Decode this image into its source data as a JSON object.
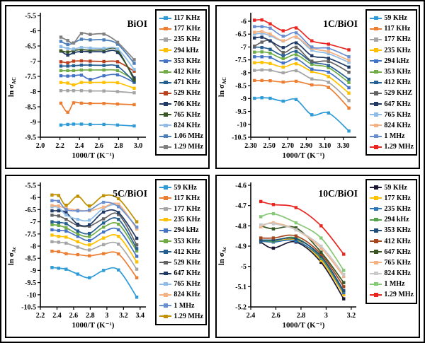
{
  "figure": {
    "background": "#ffffff",
    "border_color": "#000000"
  },
  "chart_data": [
    {
      "id": "bioi",
      "type": "line",
      "title": "BiOI",
      "ylabel_main": "ln σ",
      "ylabel_sub": "AC",
      "xlabel": "1000/T (K⁻¹)",
      "legend_position": "right",
      "grid": false,
      "xlim": [
        2.0,
        3.08
      ],
      "ylim": [
        -9.5,
        -5.5
      ],
      "xticks": [
        2.0,
        2.2,
        2.4,
        2.6,
        2.8,
        3.0
      ],
      "xtick_labels": [
        "2.0",
        "2.2",
        "2.4",
        "2.6",
        "2.8",
        "3.0"
      ],
      "yticks": [
        -5.5,
        -6,
        -6.5,
        -7,
        -7.5,
        -8,
        -8.5,
        -9,
        -9.5
      ],
      "ytick_labels": [
        "-5.5",
        "-6",
        "-6.5",
        "-7",
        "-7.5",
        "-8",
        "-8.5",
        "-9",
        "-9.5"
      ],
      "x": [
        2.21,
        2.28,
        2.34,
        2.42,
        2.51,
        2.65,
        2.79,
        2.96
      ],
      "series": [
        {
          "name": "117 KHz",
          "color": "#2E9BD6",
          "values": [
            -9.1,
            -9.08,
            -9.07,
            -9.07,
            -9.08,
            -9.08,
            -9.1,
            -9.13
          ]
        },
        {
          "name": "177 KHz",
          "color": "#ED7D31",
          "values": [
            -8.38,
            -8.68,
            -8.37,
            -8.38,
            -8.39,
            -8.39,
            -8.41,
            -8.43
          ]
        },
        {
          "name": "235 KHz",
          "color": "#A5A5A5",
          "values": [
            -7.97,
            -7.97,
            -7.97,
            -7.97,
            -7.98,
            -7.98,
            -8.0,
            -8.04
          ]
        },
        {
          "name": "294 kHz",
          "color": "#FFC000",
          "values": [
            -7.7,
            -7.72,
            -7.78,
            -7.7,
            -7.7,
            -7.7,
            -7.71,
            -7.89
          ]
        },
        {
          "name": "353 KHz",
          "color": "#4472C4",
          "values": [
            -7.48,
            -7.49,
            -7.48,
            -7.46,
            -7.6,
            -7.48,
            -7.45,
            -7.7
          ]
        },
        {
          "name": "412 KHz",
          "color": "#70AD47",
          "values": [
            -7.31,
            -7.31,
            -7.31,
            -7.29,
            -7.29,
            -7.29,
            -7.31,
            -7.62
          ]
        },
        {
          "name": "471 KHz",
          "color": "#255E91",
          "values": [
            -7.16,
            -7.16,
            -7.15,
            -7.13,
            -7.13,
            -7.14,
            -7.17,
            -7.68
          ]
        },
        {
          "name": "529 KHz",
          "color": "#BC3F1C",
          "values": [
            -7.02,
            -7.05,
            -7.0,
            -6.99,
            -7.0,
            -7.01,
            -7.02,
            -7.33
          ]
        },
        {
          "name": "706 KHz",
          "color": "#1F3864",
          "values": [
            -6.67,
            -6.8,
            -6.72,
            -6.68,
            -6.69,
            -6.69,
            -6.71,
            -7.55
          ]
        },
        {
          "name": "765 KHz",
          "color": "#375623",
          "values": [
            -6.66,
            -6.7,
            -6.65,
            -6.62,
            -6.64,
            -6.63,
            -6.64,
            -7.62
          ]
        },
        {
          "name": "824 KHz",
          "color": "#8FBCE6",
          "values": [
            -6.52,
            -6.58,
            -6.6,
            -6.55,
            -6.57,
            -6.58,
            -6.6,
            -7.27
          ]
        },
        {
          "name": "1.06 MHz",
          "color": "#4A7EBB",
          "values": [
            -6.35,
            -6.45,
            -6.4,
            -6.28,
            -6.3,
            -6.3,
            -6.44,
            -7.07
          ]
        },
        {
          "name": "1.29 MHz",
          "color": "#7F7F7F",
          "values": [
            -6.21,
            -6.32,
            -6.4,
            -6.09,
            -6.12,
            -6.11,
            -6.38,
            -6.95
          ]
        }
      ]
    },
    {
      "id": "1c-bioi",
      "type": "line",
      "title": "1C/BiOI",
      "ylabel_main": "ln σ",
      "ylabel_sub": "AC",
      "xlabel": "1000/T (K⁻¹)",
      "legend_position": "right",
      "grid": false,
      "xlim": [
        2.3,
        3.44
      ],
      "ylim": [
        -10.5,
        -5.78
      ],
      "xticks": [
        2.3,
        2.5,
        2.7,
        2.9,
        3.1,
        3.3
      ],
      "xtick_labels": [
        "2.30",
        "2.50",
        "2.70",
        "2.90",
        "3.10",
        "3.30"
      ],
      "yticks": [
        -6,
        -6.5,
        -7,
        -7.5,
        -8,
        -8.5,
        -9,
        -9.5,
        -10,
        -10.5
      ],
      "ytick_labels": [
        "-6",
        "-6.5",
        "-7",
        "-7.5",
        "-8",
        "-8.5",
        "-9",
        "-9.5",
        "-10",
        "-10.5"
      ],
      "x": [
        2.34,
        2.42,
        2.51,
        2.65,
        2.79,
        2.96,
        3.14,
        3.36
      ],
      "series": [
        {
          "name": "59 KHz",
          "color": "#2E9BD6",
          "values": [
            -8.99,
            -8.97,
            -8.99,
            -9.1,
            -9.04,
            -9.63,
            -9.56,
            -10.26
          ]
        },
        {
          "name": "117 KHz",
          "color": "#ED7D31",
          "values": [
            -8.3,
            -8.3,
            -8.31,
            -8.36,
            -8.33,
            -8.47,
            -8.57,
            -9.37
          ]
        },
        {
          "name": "177 KHz",
          "color": "#A5A5A5",
          "values": [
            -7.91,
            -7.89,
            -7.9,
            -8.0,
            -7.92,
            -8.24,
            -8.37,
            -9.08
          ]
        },
        {
          "name": "235 KHz",
          "color": "#FFC000",
          "values": [
            -7.61,
            -7.6,
            -7.64,
            -7.78,
            -7.65,
            -7.95,
            -8.15,
            -8.79
          ]
        },
        {
          "name": "294 kHz",
          "color": "#4472C4",
          "values": [
            -7.38,
            -7.38,
            -7.4,
            -7.62,
            -7.46,
            -7.86,
            -7.98,
            -8.58
          ]
        },
        {
          "name": "353 KHz",
          "color": "#70AD47",
          "values": [
            -7.2,
            -7.19,
            -7.24,
            -7.45,
            -7.3,
            -7.67,
            -7.8,
            -8.38
          ]
        },
        {
          "name": "412 KHz",
          "color": "#255E91",
          "values": [
            -7.0,
            -7.02,
            -7.09,
            -7.33,
            -7.17,
            -7.58,
            -7.72,
            -8.25
          ]
        },
        {
          "name": "529 KHZ",
          "color": "#636363",
          "values": [
            -6.97,
            -6.81,
            -6.77,
            -7.21,
            -7.01,
            -7.55,
            -7.56,
            -7.98
          ]
        },
        {
          "name": "647 KHz",
          "color": "#1F3864",
          "values": [
            -6.65,
            -6.62,
            -6.76,
            -7.02,
            -6.84,
            -7.34,
            -7.44,
            -7.78
          ]
        },
        {
          "name": "765 KHz",
          "color": "#8FBCE6",
          "values": [
            -6.5,
            -6.47,
            -6.56,
            -6.77,
            -6.62,
            -7.12,
            -7.26,
            -7.6
          ]
        },
        {
          "name": "824 KHz",
          "color": "#F4B183",
          "values": [
            -6.43,
            -6.4,
            -6.5,
            -6.76,
            -6.61,
            -7.05,
            -7.18,
            -7.52
          ]
        },
        {
          "name": "1 MHz",
          "color": "#698ED0",
          "values": [
            -6.21,
            -6.21,
            -6.27,
            -6.58,
            -6.45,
            -7.0,
            -7.05,
            -7.38
          ]
        },
        {
          "name": "1.29 MHz",
          "color": "#E8251F",
          "values": [
            -5.96,
            -5.95,
            -6.1,
            -6.37,
            -6.26,
            -6.76,
            -6.89,
            -7.11
          ]
        }
      ]
    },
    {
      "id": "5c-bioi",
      "type": "line",
      "title": "5C/BiOI",
      "ylabel_main": "ln σ",
      "ylabel_sub": "Ac",
      "xlabel": "1000/T (K⁻¹)",
      "legend_position": "right",
      "grid": false,
      "xlim": [
        2.2,
        3.47
      ],
      "ylim": [
        -10.5,
        -5.5
      ],
      "xticks": [
        2.2,
        2.4,
        2.6,
        2.8,
        3,
        3.2,
        3.4
      ],
      "xtick_labels": [
        "2.2",
        "2.4",
        "2.6",
        "2.8",
        "3",
        "3.2",
        "3.4"
      ],
      "yticks": [
        -5.5,
        -6,
        -6.5,
        -7,
        -7.5,
        -8,
        -8.5,
        -9,
        -9.5,
        -10,
        -10.5
      ],
      "ytick_labels": [
        "-5.5",
        "-6",
        "-6.5",
        "-7",
        "-7.5",
        "-8",
        "-8.5",
        "-9",
        "-9.5",
        "-10",
        "-10.5"
      ],
      "x": [
        2.34,
        2.42,
        2.51,
        2.65,
        2.79,
        2.96,
        3.14,
        3.36
      ],
      "series": [
        {
          "name": "59 KHz",
          "color": "#2E9BD6",
          "values": [
            -8.88,
            -8.91,
            -8.95,
            -9.15,
            -9.3,
            -9.0,
            -8.98,
            -10.1
          ]
        },
        {
          "name": "117 KHz",
          "color": "#ED7D31",
          "values": [
            -8.21,
            -8.23,
            -8.31,
            -8.35,
            -8.4,
            -8.31,
            -8.32,
            -9.3
          ]
        },
        {
          "name": "177 KHz",
          "color": "#A5A5A5",
          "values": [
            -7.82,
            -7.84,
            -7.88,
            -8.04,
            -8.16,
            -7.94,
            -7.92,
            -8.95
          ]
        },
        {
          "name": "235 KHz",
          "color": "#FFC000",
          "values": [
            -7.55,
            -7.6,
            -7.63,
            -7.82,
            -7.95,
            -7.67,
            -7.6,
            -8.65
          ]
        },
        {
          "name": "294 kHz",
          "color": "#4472C4",
          "values": [
            -7.33,
            -7.36,
            -7.38,
            -7.6,
            -7.77,
            -7.42,
            -7.33,
            -8.42
          ]
        },
        {
          "name": "353 KHz",
          "color": "#70AD47",
          "values": [
            -7.12,
            -7.15,
            -7.25,
            -7.5,
            -7.6,
            -7.22,
            -7.1,
            -8.2
          ]
        },
        {
          "name": "412 KHz",
          "color": "#255E91",
          "values": [
            -7.0,
            -7.03,
            -7.08,
            -7.38,
            -7.48,
            -7.05,
            -6.9,
            -8.1
          ]
        },
        {
          "name": "529 KHz",
          "color": "#636363",
          "values": [
            -6.73,
            -6.76,
            -6.9,
            -7.15,
            -7.18,
            -6.88,
            -6.7,
            -7.95
          ]
        },
        {
          "name": "647 KHz",
          "color": "#1F3864",
          "values": [
            -6.55,
            -6.55,
            -6.62,
            -7.1,
            -7.12,
            -6.6,
            -6.62,
            -7.68
          ]
        },
        {
          "name": "765 KHz",
          "color": "#8FBCE6",
          "values": [
            -6.38,
            -6.42,
            -6.72,
            -6.9,
            -6.93,
            -6.45,
            -6.35,
            -7.25
          ]
        },
        {
          "name": "824 KHz",
          "color": "#F4B183",
          "values": [
            -6.33,
            -6.35,
            -6.45,
            -6.52,
            -6.55,
            -6.4,
            -6.28,
            -7.3
          ]
        },
        {
          "name": "1 MHz",
          "color": "#698ED0",
          "values": [
            -6.13,
            -6.16,
            -6.5,
            -6.55,
            -6.52,
            -6.2,
            -6.38,
            -7.22
          ]
        },
        {
          "name": "1.29 MHz",
          "color": "#BF9000",
          "values": [
            -5.9,
            -5.92,
            -6.32,
            -5.95,
            -6.35,
            -5.93,
            -6.05,
            -7.0
          ]
        }
      ]
    },
    {
      "id": "10c-bioi",
      "type": "line",
      "title": "10C/BiOI",
      "ylabel_main": "ln σ",
      "ylabel_sub": "Ac",
      "xlabel": "1000/T (K⁻¹)",
      "legend_position": "right",
      "grid": false,
      "xlim": [
        2.4,
        3.24
      ],
      "ylim": [
        -5.2,
        -4.6
      ],
      "xticks": [
        2.4,
        2.6,
        2.8,
        3,
        3.2
      ],
      "xtick_labels": [
        "2.4",
        "2.6",
        "2.8",
        "3",
        "3.2"
      ],
      "yticks": [
        -4.6,
        -4.7,
        -4.8,
        -4.9,
        -5,
        -5.1,
        -5.2
      ],
      "ytick_labels": [
        "-4.6",
        "-4.7",
        "-4.8",
        "-4.9",
        "-5",
        "-5.1",
        "-5.2"
      ],
      "x": [
        2.48,
        2.58,
        2.76,
        2.96,
        3.14
      ],
      "series": [
        {
          "name": "59 KHz",
          "color": "#1B1833",
          "values": [
            -4.88,
            -4.91,
            -4.88,
            -4.98,
            -5.16
          ]
        },
        {
          "name": "177 KHz",
          "color": "#FFC000",
          "values": [
            -4.875,
            -4.88,
            -4.87,
            -4.97,
            -5.14
          ]
        },
        {
          "name": "235 KHz",
          "color": "#2E75B6",
          "values": [
            -4.875,
            -4.88,
            -4.875,
            -4.96,
            -5.13
          ]
        },
        {
          "name": "294 kHz",
          "color": "#54A24B",
          "values": [
            -4.87,
            -4.875,
            -4.86,
            -4.955,
            -5.12
          ]
        },
        {
          "name": "353 KHz",
          "color": "#1F4E79",
          "values": [
            -4.87,
            -4.87,
            -4.865,
            -4.95,
            -5.12
          ]
        },
        {
          "name": "412 KHz",
          "color": "#A5471F",
          "values": [
            -4.86,
            -4.86,
            -4.85,
            -4.94,
            -5.1
          ]
        },
        {
          "name": "647 KHz",
          "color": "#375623",
          "values": [
            -4.8,
            -4.815,
            -4.81,
            -4.93,
            -5.08
          ]
        },
        {
          "name": "765 KHz",
          "color": "#F4B183",
          "values": [
            -4.805,
            -4.785,
            -4.82,
            -4.91,
            -5.05
          ]
        },
        {
          "name": "824 KHz",
          "color": "#C9C9C9",
          "values": [
            -4.795,
            -4.79,
            -4.82,
            -4.9,
            -5.04
          ]
        },
        {
          "name": "1 MHz",
          "color": "#85C876",
          "values": [
            -4.755,
            -4.74,
            -4.785,
            -4.86,
            -5.02
          ]
        },
        {
          "name": "1.29 MHz",
          "color": "#E8251F",
          "values": [
            -4.68,
            -4.695,
            -4.71,
            -4.8,
            -4.94
          ]
        }
      ]
    }
  ]
}
